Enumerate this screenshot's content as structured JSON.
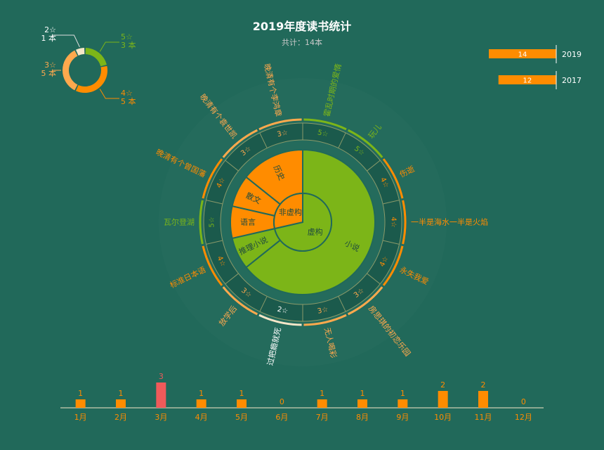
{
  "title": "2019年度读书统计",
  "subtitle": "共计：14本",
  "colors": {
    "background": "#21695a",
    "orange": "#ff8c00",
    "green": "#7cb518",
    "light_orange": "#ffa94d",
    "cream": "#f5e6c8",
    "red": "#ef5a5a",
    "ring_line": "#8a9a6a"
  },
  "chart_data": [
    {
      "type": "pie",
      "subtype": "donut",
      "name": "rating-donut",
      "slices": [
        {
          "label": "5☆",
          "count_label": "3 本",
          "value": 3,
          "color": "#7cb518"
        },
        {
          "label": "4☆",
          "count_label": "5 本",
          "value": 5,
          "color": "#ff8c00"
        },
        {
          "label": "3☆",
          "count_label": "5 本",
          "value": 5,
          "color": "#ffa94d"
        },
        {
          "label": "2☆",
          "count_label": "1 本",
          "value": 1,
          "color": "#f5e6c8"
        }
      ]
    },
    {
      "type": "bar",
      "subtype": "horizontal",
      "name": "yearly-comparison",
      "categories": [
        "2019",
        "2017"
      ],
      "values": [
        14,
        12
      ],
      "value_labels": [
        "14",
        "12"
      ]
    },
    {
      "type": "pie",
      "subtype": "sunburst",
      "name": "book-sunburst",
      "inner": [
        {
          "label": "虚构",
          "value": 10,
          "color": "#7cb518"
        },
        {
          "label": "非虚构",
          "value": 4,
          "color": "#ff8c00"
        }
      ],
      "middle": [
        {
          "label": "小说",
          "value": 9,
          "color": "#7cb518"
        },
        {
          "label": "推理小说",
          "value": 1,
          "color": "#7cb518"
        },
        {
          "label": "语言",
          "value": 1,
          "color": "#ff8c00"
        },
        {
          "label": "散文",
          "value": 1,
          "color": "#ff8c00"
        },
        {
          "label": "历史",
          "value": 2,
          "color": "#ff8c00"
        }
      ],
      "books": [
        {
          "title": "霍乱时期的爱情",
          "rating": "5☆",
          "color": "#7cb518"
        },
        {
          "title": "玩儿",
          "rating": "5☆",
          "color": "#7cb518"
        },
        {
          "title": "伤逝",
          "rating": "4☆",
          "color": "#ff8c00"
        },
        {
          "title": "一半是海水一半是火焰",
          "rating": "4☆",
          "color": "#ff8c00"
        },
        {
          "title": "永失我爱",
          "rating": "4☆",
          "color": "#ff8c00"
        },
        {
          "title": "房思琪的初恋乐园",
          "rating": "3☆",
          "color": "#ffa94d"
        },
        {
          "title": "无人喝彩",
          "rating": "3☆",
          "color": "#ffa94d"
        },
        {
          "title": "过把瘾就死",
          "rating": "2☆",
          "color": "#f5e6c8"
        },
        {
          "title": "放学后",
          "rating": "3☆",
          "color": "#ffa94d"
        },
        {
          "title": "标准日本语",
          "rating": "4☆",
          "color": "#ff8c00"
        },
        {
          "title": "瓦尔登湖",
          "rating": "5☆",
          "color": "#7cb518"
        },
        {
          "title": "晚清有个曾国藩",
          "rating": "4☆",
          "color": "#ff8c00"
        },
        {
          "title": "晚清有个袁世凯",
          "rating": "3☆",
          "color": "#ffa94d"
        },
        {
          "title": "晚清有个李鸿章",
          "rating": "3☆",
          "color": "#ffa94d"
        }
      ]
    },
    {
      "type": "bar",
      "name": "monthly-count",
      "categories": [
        "1月",
        "2月",
        "3月",
        "4月",
        "5月",
        "6月",
        "7月",
        "8月",
        "9月",
        "10月",
        "11月",
        "12月"
      ],
      "values": [
        1,
        1,
        3,
        1,
        1,
        0,
        1,
        1,
        1,
        2,
        2,
        0
      ],
      "ylim": [
        0,
        3
      ],
      "highlight_index": 2
    }
  ]
}
